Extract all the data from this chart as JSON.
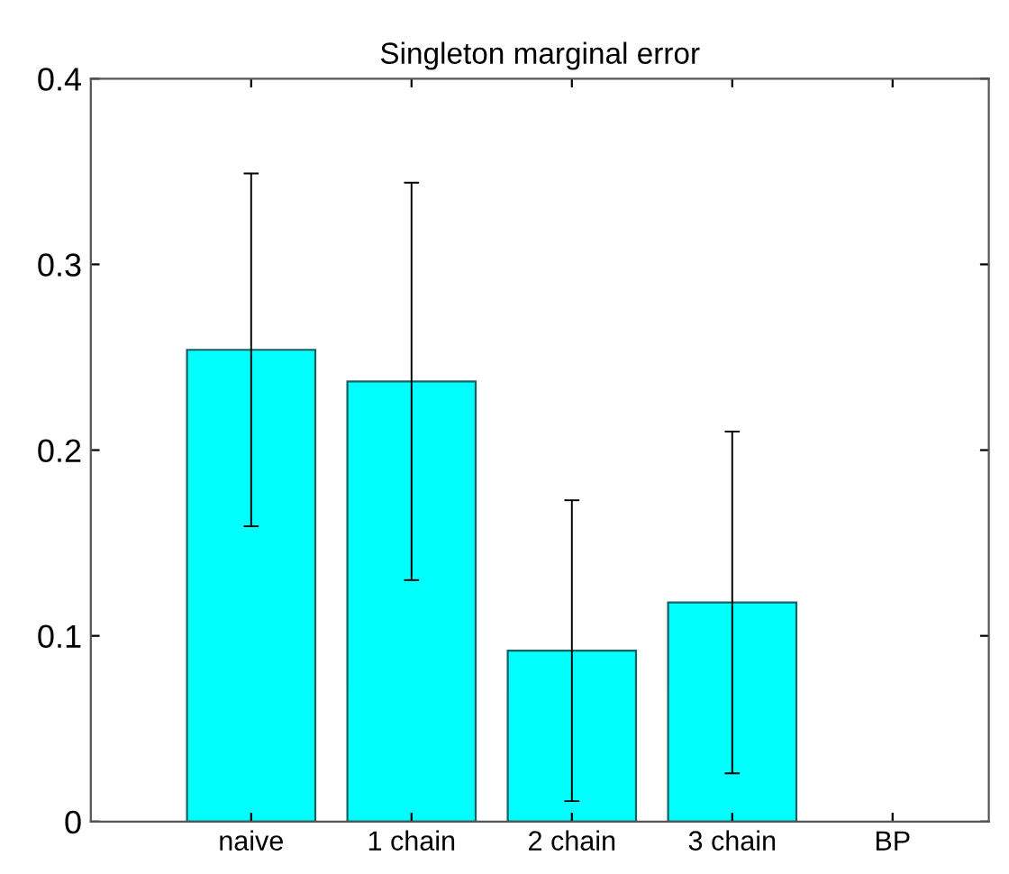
{
  "chart_data": {
    "type": "bar",
    "title": "Singleton marginal error",
    "categories": [
      "naive",
      "1 chain",
      "2 chain",
      "3 chain",
      "BP"
    ],
    "values": [
      0.254,
      0.237,
      0.092,
      0.118,
      null
    ],
    "errors": [
      [
        0.159,
        0.349
      ],
      [
        0.13,
        0.344
      ],
      [
        0.011,
        0.173
      ],
      [
        0.026,
        0.21
      ],
      null
    ],
    "color": "#00ffff",
    "ylim": [
      0,
      0.4
    ],
    "yticks": [
      0,
      0.1,
      0.2,
      0.3,
      0.4
    ],
    "grid": false
  }
}
